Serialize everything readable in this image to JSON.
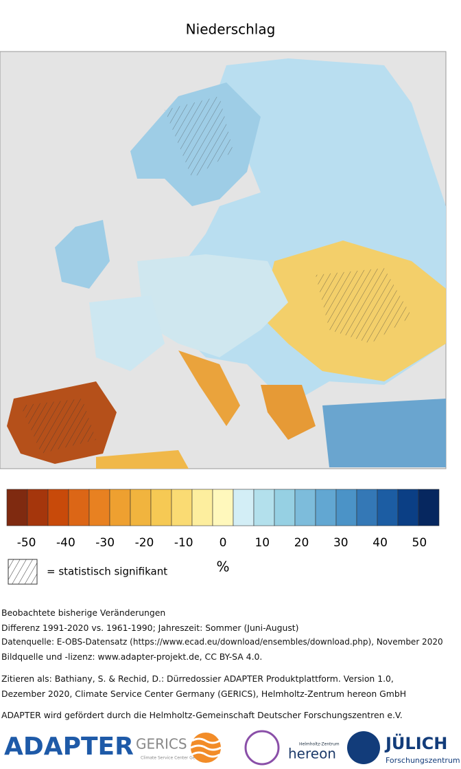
{
  "title": "Niederschlag",
  "colorbar": {
    "colors": [
      "#7f2a10",
      "#a5360c",
      "#c84a0a",
      "#dc6616",
      "#e88121",
      "#eea030",
      "#f1b43e",
      "#f6c954",
      "#fadb73",
      "#fdee9e",
      "#fff8bc",
      "#d3eef6",
      "#b3e0ec",
      "#96d0e3",
      "#7dbcdb",
      "#62a7d2",
      "#4b93c7",
      "#3478b6",
      "#1c5da3",
      "#0b3f85",
      "#06275f"
    ],
    "lim": [
      -55,
      55
    ],
    "ticks": [
      -50,
      -40,
      -30,
      -20,
      -10,
      0,
      10,
      20,
      30,
      40,
      50
    ],
    "unit": "%"
  },
  "legend": {
    "label": "= statistisch signifikant"
  },
  "caption": {
    "lines": [
      "Beobachtete bisherige Veränderungen",
      "Differenz 1991-2020 vs. 1961-1990; Jahreszeit: Sommer (Juni-August)",
      "Datenquelle: E-OBS-Datensatz (https://www.ecad.eu/download/ensembles/download.php), November 2020",
      "Bildquelle und -lizenz: www.adapter-projekt.de, CC BY-SA 4.0."
    ],
    "citation": [
      "Zitieren als: Bathiany, S. & Rechid, D.: Dürredossier ADAPTER Produktplattform. Version 1.0,",
      "Dezember 2020, Climate Service Center Germany (GERICS), Helmholtz-Zentrum hereon GmbH"
    ],
    "funding": "ADAPTER wird gefördert durch die Helmholtz-Gemeinschaft Deutscher Forschungszentren e.V."
  },
  "logos": {
    "adapter": "ADAPTER",
    "gerics": "GERICS",
    "gerics_sub": "Climate Service Center Germany",
    "hereon_sub": "Helmholtz-Zentrum",
    "hereon": "hereon",
    "juelich": "JÜLICH",
    "juelich_sub": "Forschungszentrum"
  }
}
